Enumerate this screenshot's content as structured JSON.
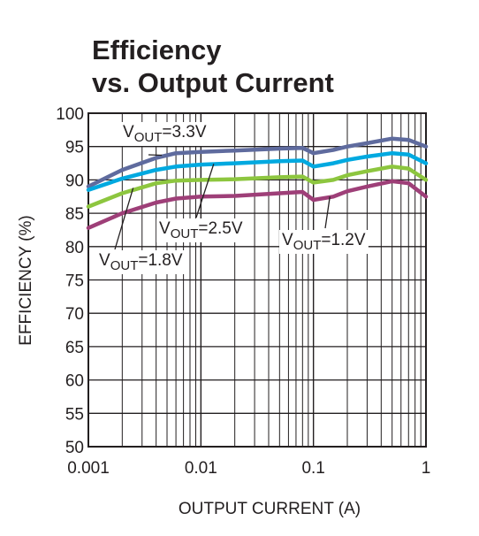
{
  "chart_data": {
    "type": "line",
    "title_line1": "Efficiency",
    "title_line2": "vs. Output Current",
    "xlabel": "OUTPUT CURRENT (A)",
    "ylabel": "EFFICIENCY (%)",
    "x_scale": "log",
    "xlim": [
      0.001,
      1
    ],
    "ylim": [
      50,
      100
    ],
    "grid": true,
    "x_ticks": [
      "0.001",
      "0.01",
      "0.1",
      "1"
    ],
    "y_ticks": [
      "50",
      "55",
      "60",
      "65",
      "70",
      "75",
      "80",
      "85",
      "90",
      "95",
      "100"
    ],
    "series": [
      {
        "name": "VOUT=3.3V",
        "label_main": "V",
        "label_sub": "OUT",
        "label_tail": "=3.3V",
        "color": "#5f6b9e",
        "x": [
          0.001,
          0.002,
          0.004,
          0.006,
          0.01,
          0.02,
          0.05,
          0.08,
          0.1,
          0.15,
          0.2,
          0.3,
          0.5,
          0.7,
          1
        ],
        "y": [
          89.0,
          91.5,
          93.3,
          94.0,
          94.2,
          94.4,
          94.7,
          94.8,
          94.0,
          94.5,
          95.0,
          95.5,
          96.2,
          96.0,
          95.0
        ]
      },
      {
        "name": "VOUT=2.5V",
        "label_main": "V",
        "label_sub": "OUT",
        "label_tail": "=2.5V",
        "color": "#00a9e0",
        "x": [
          0.001,
          0.002,
          0.004,
          0.006,
          0.01,
          0.02,
          0.05,
          0.08,
          0.1,
          0.15,
          0.2,
          0.3,
          0.5,
          0.7,
          1
        ],
        "y": [
          88.5,
          90.2,
          91.5,
          92.0,
          92.3,
          92.5,
          92.8,
          92.9,
          92.0,
          92.5,
          93.0,
          93.5,
          94.0,
          93.8,
          92.5
        ]
      },
      {
        "name": "VOUT=1.8V",
        "label_main": "V",
        "label_sub": "OUT",
        "label_tail": "=1.8V",
        "color": "#8dc63f",
        "x": [
          0.001,
          0.002,
          0.004,
          0.006,
          0.01,
          0.02,
          0.05,
          0.08,
          0.1,
          0.15,
          0.2,
          0.3,
          0.5,
          0.7,
          1
        ],
        "y": [
          86.0,
          88.0,
          89.5,
          89.9,
          90.0,
          90.1,
          90.4,
          90.5,
          89.6,
          90.0,
          90.7,
          91.3,
          92.0,
          91.7,
          90.0
        ]
      },
      {
        "name": "VOUT=1.2V",
        "label_main": "V",
        "label_sub": "OUT",
        "label_tail": "=1.2V",
        "color": "#9e3f78",
        "x": [
          0.001,
          0.002,
          0.004,
          0.006,
          0.01,
          0.02,
          0.05,
          0.08,
          0.1,
          0.15,
          0.2,
          0.3,
          0.5,
          0.7,
          1
        ],
        "y": [
          82.8,
          85.0,
          86.6,
          87.2,
          87.5,
          87.6,
          88.0,
          88.2,
          87.0,
          87.5,
          88.3,
          89.0,
          89.8,
          89.5,
          87.5
        ]
      }
    ],
    "annotations": [
      {
        "series": 0,
        "point_x": 0.0045,
        "point_y": 93.7
      },
      {
        "series": 1,
        "point_x": 0.013,
        "point_y": 92.4
      },
      {
        "series": 2,
        "point_x": 0.0025,
        "point_y": 88.8
      },
      {
        "series": 3,
        "point_x": 0.14,
        "point_y": 87.5
      }
    ]
  }
}
